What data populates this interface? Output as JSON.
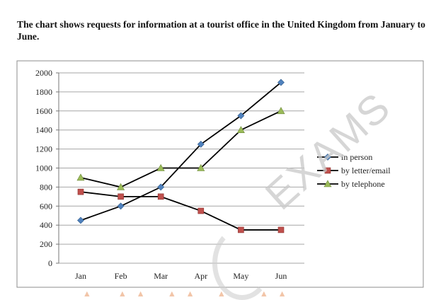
{
  "page": {
    "caption": "The chart shows requests for information at a tourist office in the United Kingdom from January to June.",
    "watermark": "EXAMS",
    "watermark_color": "#c9c9c9"
  },
  "chart_data": {
    "type": "line",
    "title": "",
    "xlabel": "",
    "ylabel": "",
    "categories": [
      "Jan",
      "Feb",
      "Mar",
      "Apr",
      "May",
      "Jun"
    ],
    "ylim": [
      0,
      2000
    ],
    "yticks": [
      0,
      200,
      400,
      600,
      800,
      1000,
      1200,
      1400,
      1600,
      1800,
      2000
    ],
    "grid": true,
    "legend_position": "right",
    "series": [
      {
        "name": "in person",
        "values": [
          450,
          600,
          800,
          1250,
          1550,
          1900
        ],
        "color": "#4f81bd",
        "marker": "diamond"
      },
      {
        "name": "by letter/email",
        "values": [
          750,
          700,
          700,
          550,
          350,
          350
        ],
        "color": "#c0504d",
        "marker": "square"
      },
      {
        "name": "by telephone",
        "values": [
          900,
          800,
          1000,
          1000,
          1400,
          1600
        ],
        "color": "#9bbb59",
        "marker": "triangle"
      }
    ]
  }
}
